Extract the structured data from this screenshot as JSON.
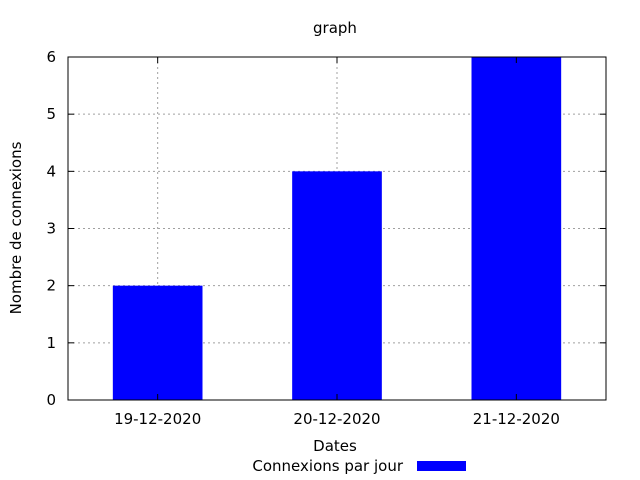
{
  "chart_data": {
    "type": "bar",
    "title": "graph",
    "xlabel": "Dates",
    "ylabel": "Nombre de connexions",
    "categories": [
      "19-12-2020",
      "20-12-2020",
      "21-12-2020"
    ],
    "series": [
      {
        "name": "Connexions par jour",
        "values": [
          2,
          4,
          6
        ],
        "color": "#0000ff"
      }
    ],
    "ylim": [
      0,
      6
    ],
    "yticks": [
      0,
      1,
      2,
      3,
      4,
      5,
      6
    ],
    "grid": true,
    "legend_position": "bottom-center"
  }
}
